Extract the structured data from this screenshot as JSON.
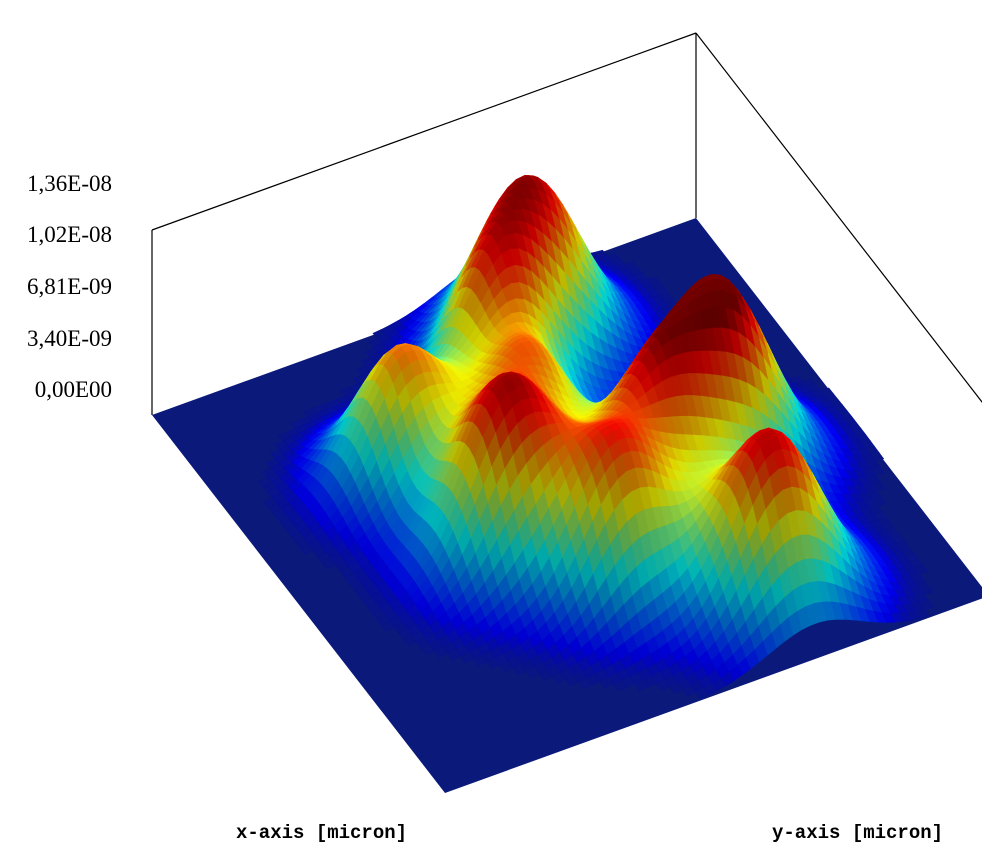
{
  "chart_data": {
    "type": "surface",
    "title": "",
    "xlabel": "x-axis [micron]",
    "ylabel": "y-axis [micron]",
    "zlabel": "",
    "z_tick_labels": [
      "1,36E-08",
      "1,02E-08",
      "6,81E-09",
      "3,40E-09",
      "0,00E00"
    ],
    "zlim": [
      0,
      1.36e-08
    ],
    "grid": false,
    "colormap": "jet",
    "colors": {
      "floor": "#0b1a7a",
      "frame": "#000000",
      "low": "#00008f",
      "mid": "#7fff7f",
      "high": "#ff2000"
    },
    "peaks": [
      {
        "x": 0.15,
        "y": 0.62,
        "z": 1.17e-08,
        "sigma": 0.085
      },
      {
        "x": 0.25,
        "y": 0.5,
        "z": 9.7e-09,
        "sigma": 0.075
      },
      {
        "x": 0.55,
        "y": 0.75,
        "z": 1.36e-08,
        "sigma": 0.085
      },
      {
        "x": 0.33,
        "y": 0.28,
        "z": 9.7e-09,
        "sigma": 0.075
      },
      {
        "x": 0.42,
        "y": 0.47,
        "z": 8.1e-09,
        "sigma": 0.07
      },
      {
        "x": 0.6,
        "y": 0.6,
        "z": 9.7e-09,
        "sigma": 0.075
      },
      {
        "x": 0.56,
        "y": 0.35,
        "z": 1.24e-08,
        "sigma": 0.085
      },
      {
        "x": 0.72,
        "y": 0.47,
        "z": 9.7e-09,
        "sigma": 0.075
      },
      {
        "x": 0.85,
        "y": 0.68,
        "z": 1.24e-08,
        "sigma": 0.085
      }
    ]
  }
}
